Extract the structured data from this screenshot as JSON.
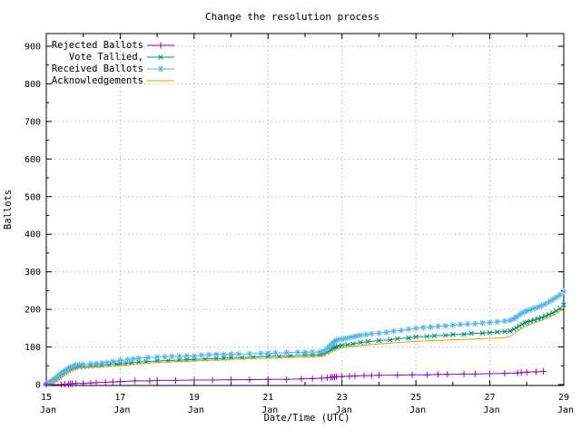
{
  "title": "Change the resolution process",
  "colors": {
    "background": "#ffffff",
    "border": "#000000",
    "grid": "#b8b8b8",
    "rejected": "#9400d3",
    "tallied": "#009272",
    "received": "#56b4e9",
    "acknowledgements": "#e69f00"
  },
  "chart_data": {
    "type": "line",
    "title": "Change the resolution process",
    "xlabel": "Date/Time (UTC)",
    "ylabel": "Ballots",
    "x_unit": "days since 15 Jan 00:00 UTC",
    "x_range_days": [
      0,
      14
    ],
    "ylim": [
      0,
      930
    ],
    "y_major_tick": 100,
    "y_minor_tick": 50,
    "x_minor_tick_days": 1,
    "grid": "dotted",
    "legend_position": "top-left",
    "x_ticks": [
      {
        "day": 0,
        "top": "15",
        "bottom": "Jan"
      },
      {
        "day": 2,
        "top": "17",
        "bottom": "Jan"
      },
      {
        "day": 4,
        "top": "19",
        "bottom": "Jan"
      },
      {
        "day": 6,
        "top": "21",
        "bottom": "Jan"
      },
      {
        "day": 8,
        "top": "23",
        "bottom": "Jan"
      },
      {
        "day": 10,
        "top": "25",
        "bottom": "Jan"
      },
      {
        "day": 12,
        "top": "27",
        "bottom": "Jan"
      },
      {
        "day": 14,
        "top": "29",
        "bottom": "Jan"
      }
    ],
    "y_ticks": [
      0,
      100,
      200,
      300,
      400,
      500,
      600,
      700,
      800,
      900
    ],
    "series": [
      {
        "name": "Rejected Ballots",
        "color": "#9400d3",
        "marker": "plus",
        "points": [
          [
            0,
            0
          ],
          [
            0.4,
            0
          ],
          [
            0.5,
            1
          ],
          [
            0.6,
            1
          ],
          [
            0.65,
            2
          ],
          [
            0.7,
            2
          ],
          [
            0.8,
            3
          ],
          [
            1,
            3
          ],
          [
            1.2,
            4
          ],
          [
            1.35,
            5
          ],
          [
            1.6,
            6
          ],
          [
            1.8,
            7
          ],
          [
            2,
            8
          ],
          [
            2.4,
            10
          ],
          [
            2.8,
            10
          ],
          [
            3,
            11
          ],
          [
            3.5,
            11
          ],
          [
            4,
            12
          ],
          [
            4.5,
            12
          ],
          [
            5,
            13
          ],
          [
            5.5,
            13
          ],
          [
            6,
            14
          ],
          [
            6.5,
            14
          ],
          [
            6.9,
            15
          ],
          [
            7.2,
            16
          ],
          [
            7.45,
            17
          ],
          [
            7.6,
            18
          ],
          [
            7.7,
            19
          ],
          [
            7.75,
            20
          ],
          [
            7.8,
            20
          ],
          [
            7.85,
            21
          ],
          [
            8,
            21
          ],
          [
            8.2,
            22
          ],
          [
            8.35,
            23
          ],
          [
            8.6,
            24
          ],
          [
            8.8,
            24
          ],
          [
            9,
            25
          ],
          [
            9.5,
            25
          ],
          [
            9.9,
            26
          ],
          [
            10.3,
            26
          ],
          [
            10.6,
            27
          ],
          [
            10.85,
            27
          ],
          [
            11.3,
            28
          ],
          [
            11.6,
            28
          ],
          [
            12,
            29
          ],
          [
            12.4,
            30
          ],
          [
            12.75,
            31
          ],
          [
            12.85,
            32
          ],
          [
            13,
            33
          ],
          [
            13.25,
            34
          ],
          [
            13.45,
            35
          ]
        ]
      },
      {
        "name": "Vote Tallied,",
        "color": "#009272",
        "marker": "cross",
        "points": [
          [
            0,
            1
          ],
          [
            0.05,
            3
          ],
          [
            0.1,
            5
          ],
          [
            0.15,
            8
          ],
          [
            0.2,
            11
          ],
          [
            0.25,
            14
          ],
          [
            0.3,
            17
          ],
          [
            0.35,
            21
          ],
          [
            0.4,
            25
          ],
          [
            0.45,
            29
          ],
          [
            0.5,
            32
          ],
          [
            0.55,
            35
          ],
          [
            0.6,
            38
          ],
          [
            0.65,
            41
          ],
          [
            0.7,
            43
          ],
          [
            0.75,
            45
          ],
          [
            0.8,
            46
          ],
          [
            0.9,
            47
          ],
          [
            1,
            48
          ],
          [
            1.2,
            49
          ],
          [
            1.35,
            50
          ],
          [
            1.5,
            51
          ],
          [
            1.7,
            53
          ],
          [
            1.9,
            54
          ],
          [
            2,
            55
          ],
          [
            2.15,
            56
          ],
          [
            2.3,
            58
          ],
          [
            2.5,
            60
          ],
          [
            2.7,
            61
          ],
          [
            3,
            63
          ],
          [
            3.3,
            64
          ],
          [
            3.6,
            65
          ],
          [
            3.8,
            66
          ],
          [
            4,
            67
          ],
          [
            4.3,
            68
          ],
          [
            4.6,
            69
          ],
          [
            4.8,
            70
          ],
          [
            5,
            72
          ],
          [
            5.3,
            72
          ],
          [
            5.6,
            73
          ],
          [
            6,
            75
          ],
          [
            6.3,
            75
          ],
          [
            6.6,
            76
          ],
          [
            7,
            78
          ],
          [
            7.2,
            78
          ],
          [
            7.4,
            79
          ],
          [
            7.5,
            81
          ],
          [
            7.6,
            86
          ],
          [
            7.65,
            90
          ],
          [
            7.7,
            93
          ],
          [
            7.75,
            96
          ],
          [
            7.8,
            99
          ],
          [
            7.85,
            100
          ],
          [
            7.9,
            102
          ],
          [
            8,
            104
          ],
          [
            8.15,
            106
          ],
          [
            8.3,
            108
          ],
          [
            8.5,
            112
          ],
          [
            8.7,
            114
          ],
          [
            9,
            117
          ],
          [
            9.3,
            119
          ],
          [
            9.5,
            122
          ],
          [
            9.8,
            124
          ],
          [
            10,
            127
          ],
          [
            10.3,
            128
          ],
          [
            10.5,
            130
          ],
          [
            10.8,
            131
          ],
          [
            11,
            133
          ],
          [
            11.3,
            134
          ],
          [
            11.5,
            136
          ],
          [
            11.8,
            137
          ],
          [
            12,
            138
          ],
          [
            12.2,
            140
          ],
          [
            12.4,
            141
          ],
          [
            12.55,
            143
          ],
          [
            12.65,
            147
          ],
          [
            12.72,
            151
          ],
          [
            12.8,
            156
          ],
          [
            12.87,
            160
          ],
          [
            12.95,
            164
          ],
          [
            13,
            166
          ],
          [
            13.1,
            169
          ],
          [
            13.2,
            172
          ],
          [
            13.3,
            175
          ],
          [
            13.4,
            178
          ],
          [
            13.5,
            182
          ],
          [
            13.6,
            186
          ],
          [
            13.7,
            191
          ],
          [
            13.8,
            196
          ],
          [
            13.9,
            203
          ],
          [
            14,
            212
          ]
        ]
      },
      {
        "name": "Received Ballots",
        "color": "#56b4e9",
        "marker": "asterisk",
        "points": [
          [
            0,
            2
          ],
          [
            0.05,
            4
          ],
          [
            0.1,
            7
          ],
          [
            0.15,
            10
          ],
          [
            0.2,
            13
          ],
          [
            0.25,
            17
          ],
          [
            0.3,
            20
          ],
          [
            0.35,
            25
          ],
          [
            0.4,
            29
          ],
          [
            0.45,
            33
          ],
          [
            0.5,
            36
          ],
          [
            0.55,
            40
          ],
          [
            0.6,
            43
          ],
          [
            0.65,
            46
          ],
          [
            0.7,
            48
          ],
          [
            0.75,
            50
          ],
          [
            0.8,
            52
          ],
          [
            0.9,
            53
          ],
          [
            1,
            53
          ],
          [
            1.2,
            55
          ],
          [
            1.35,
            56
          ],
          [
            1.5,
            57
          ],
          [
            1.65,
            59
          ],
          [
            1.8,
            61
          ],
          [
            2,
            64
          ],
          [
            2.2,
            66
          ],
          [
            2.35,
            68
          ],
          [
            2.5,
            70
          ],
          [
            2.75,
            72
          ],
          [
            3,
            73
          ],
          [
            3.2,
            74
          ],
          [
            3.4,
            75
          ],
          [
            3.6,
            75
          ],
          [
            3.8,
            76
          ],
          [
            4,
            76
          ],
          [
            4.2,
            78
          ],
          [
            4.4,
            79
          ],
          [
            4.6,
            80
          ],
          [
            4.8,
            80
          ],
          [
            5,
            81
          ],
          [
            5.2,
            81
          ],
          [
            5.5,
            82
          ],
          [
            5.8,
            83
          ],
          [
            6,
            83
          ],
          [
            6.2,
            84
          ],
          [
            6.5,
            85
          ],
          [
            6.8,
            86
          ],
          [
            7,
            86
          ],
          [
            7.2,
            87
          ],
          [
            7.4,
            87
          ],
          [
            7.5,
            89
          ],
          [
            7.6,
            95
          ],
          [
            7.65,
            100
          ],
          [
            7.7,
            105
          ],
          [
            7.75,
            110
          ],
          [
            7.8,
            114
          ],
          [
            7.85,
            118
          ],
          [
            7.9,
            120
          ],
          [
            8,
            121
          ],
          [
            8.1,
            123
          ],
          [
            8.2,
            125
          ],
          [
            8.3,
            127
          ],
          [
            8.4,
            129
          ],
          [
            8.5,
            131
          ],
          [
            8.65,
            133
          ],
          [
            8.8,
            135
          ],
          [
            9,
            137
          ],
          [
            9.2,
            139
          ],
          [
            9.4,
            142
          ],
          [
            9.6,
            144
          ],
          [
            9.8,
            147
          ],
          [
            10,
            150
          ],
          [
            10.2,
            152
          ],
          [
            10.4,
            153
          ],
          [
            10.6,
            155
          ],
          [
            10.8,
            156
          ],
          [
            11,
            158
          ],
          [
            11.2,
            160
          ],
          [
            11.4,
            161
          ],
          [
            11.6,
            162
          ],
          [
            11.8,
            164
          ],
          [
            12,
            165
          ],
          [
            12.2,
            167
          ],
          [
            12.4,
            169
          ],
          [
            12.55,
            171
          ],
          [
            12.65,
            175
          ],
          [
            12.72,
            180
          ],
          [
            12.8,
            185
          ],
          [
            12.87,
            190
          ],
          [
            12.95,
            194
          ],
          [
            13,
            196
          ],
          [
            13.1,
            199
          ],
          [
            13.2,
            203
          ],
          [
            13.3,
            206
          ],
          [
            13.4,
            210
          ],
          [
            13.5,
            214
          ],
          [
            13.6,
            220
          ],
          [
            13.7,
            226
          ],
          [
            13.8,
            232
          ],
          [
            13.9,
            239
          ],
          [
            14,
            248
          ]
        ]
      },
      {
        "name": "Acknowledgements",
        "color": "#e69f00",
        "marker": "none",
        "points": [
          [
            0,
            0
          ],
          [
            0.1,
            4
          ],
          [
            0.2,
            9
          ],
          [
            0.3,
            15
          ],
          [
            0.4,
            22
          ],
          [
            0.5,
            28
          ],
          [
            0.6,
            34
          ],
          [
            0.7,
            39
          ],
          [
            0.8,
            43
          ],
          [
            1,
            45
          ],
          [
            1.5,
            47
          ],
          [
            2,
            50
          ],
          [
            2.5,
            55
          ],
          [
            3,
            59
          ],
          [
            3.5,
            61
          ],
          [
            4,
            63
          ],
          [
            4.5,
            65
          ],
          [
            5,
            67
          ],
          [
            5.5,
            69
          ],
          [
            6,
            70
          ],
          [
            6.5,
            72
          ],
          [
            7,
            73
          ],
          [
            7.4,
            75
          ],
          [
            7.5,
            77
          ],
          [
            7.7,
            88
          ],
          [
            7.85,
            95
          ],
          [
            8,
            98
          ],
          [
            8.5,
            104
          ],
          [
            9,
            108
          ],
          [
            9.5,
            112
          ],
          [
            10,
            115
          ],
          [
            10.5,
            117
          ],
          [
            11,
            119
          ],
          [
            11.5,
            121
          ],
          [
            12,
            123
          ],
          [
            12.4,
            125
          ],
          [
            12.55,
            128
          ],
          [
            12.72,
            140
          ],
          [
            12.87,
            150
          ],
          [
            13,
            156
          ],
          [
            13.2,
            164
          ],
          [
            13.4,
            171
          ],
          [
            13.6,
            179
          ],
          [
            13.8,
            189
          ],
          [
            14,
            204
          ]
        ]
      }
    ]
  }
}
